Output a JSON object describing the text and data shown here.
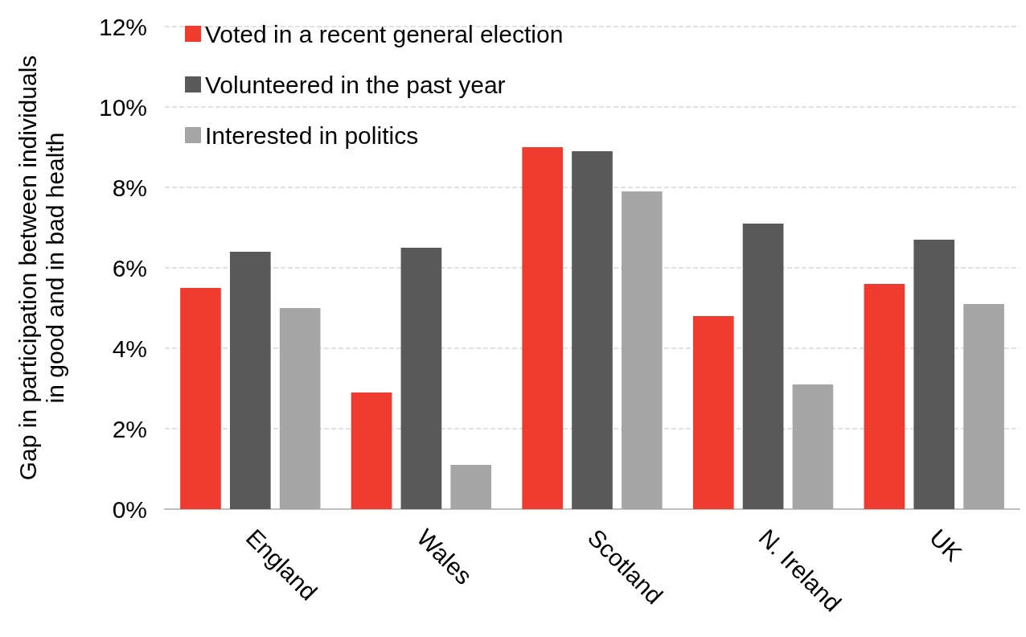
{
  "chart_data": {
    "type": "bar",
    "ylabel": "Gap in participation between individuals\nin good and in bad health",
    "categories": [
      "England",
      "Wales",
      "Scotland",
      "N. Ireland",
      "UK"
    ],
    "series": [
      {
        "name": "Voted in a recent general election",
        "color": "#ee3a2f",
        "values": [
          5.5,
          2.9,
          9.0,
          4.8,
          5.6
        ]
      },
      {
        "name": "Volunteered in the past year",
        "color": "#595959",
        "values": [
          6.4,
          6.5,
          8.9,
          7.1,
          6.7
        ]
      },
      {
        "name": "Interested in politics",
        "color": "#a6a6a6",
        "values": [
          5.0,
          1.1,
          7.9,
          3.1,
          5.1
        ]
      }
    ],
    "ylim": [
      0,
      12
    ],
    "yticks": [
      {
        "value": 0,
        "label": "0%"
      },
      {
        "value": 2,
        "label": "2%"
      },
      {
        "value": 4,
        "label": "4%"
      },
      {
        "value": 6,
        "label": "6%"
      },
      {
        "value": 8,
        "label": "8%"
      },
      {
        "value": 10,
        "label": "10%"
      },
      {
        "value": 12,
        "label": "12%"
      }
    ],
    "grid": "y",
    "legend": "top left"
  }
}
